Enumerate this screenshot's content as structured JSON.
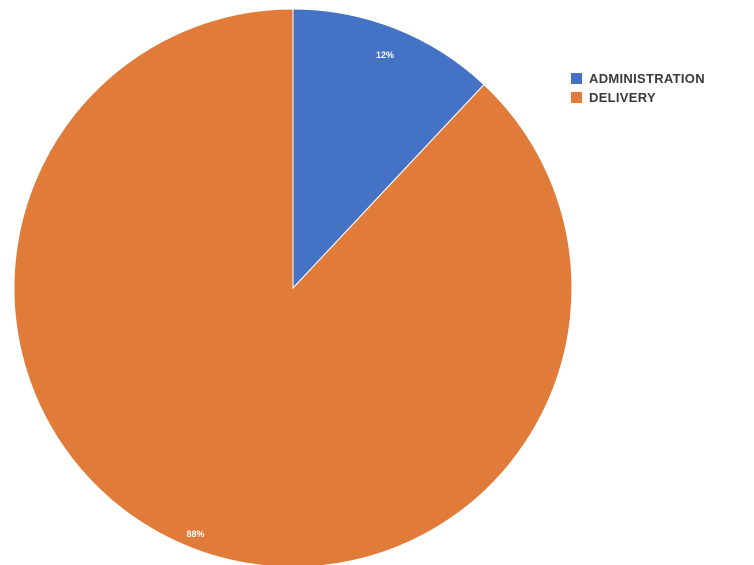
{
  "chart_data": {
    "type": "pie",
    "categories": [
      "ADMINISTRATION",
      "DELIVERY"
    ],
    "values": [
      12,
      88
    ],
    "value_labels": [
      "12%",
      "88%"
    ],
    "colors": [
      "#4472C4",
      "#E07B39"
    ],
    "start_angle_deg": 0,
    "direction": "clockwise",
    "legend_position": "right"
  },
  "legend": {
    "items": [
      {
        "label": "ADMINISTRATION",
        "color": "#4472C4"
      },
      {
        "label": "DELIVERY",
        "color": "#E07B39"
      }
    ]
  }
}
